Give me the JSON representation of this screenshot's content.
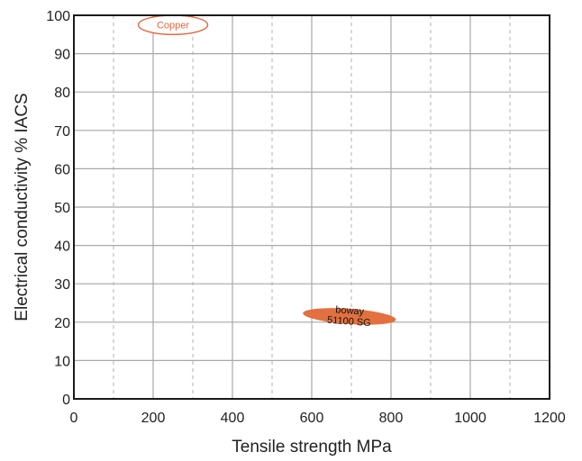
{
  "chart_data": {
    "type": "scatter",
    "title": "",
    "xlabel": "Tensile strength MPa",
    "ylabel": "Electrical conductivity % IACS",
    "xlim": [
      0,
      1200
    ],
    "ylim": [
      0,
      100
    ],
    "xticks": [
      0,
      200,
      400,
      600,
      800,
      1000,
      1200
    ],
    "yticks": [
      0,
      10,
      20,
      30,
      40,
      50,
      60,
      70,
      80,
      90,
      100
    ],
    "x_minor_dashed": [
      100,
      300,
      500,
      700,
      900,
      1100
    ],
    "grid": true,
    "regions": [
      {
        "label": "Copper",
        "x_range": [
          160,
          335
        ],
        "y_range": [
          95,
          100
        ],
        "center": [
          250,
          97.5
        ],
        "style": "outline",
        "color": "#e2673f"
      },
      {
        "label_lines": [
          "boway",
          "51100 SG"
        ],
        "x_range": [
          575,
          810
        ],
        "y_range": [
          19.5,
          23.5
        ],
        "center": [
          695,
          21.5
        ],
        "style": "filled",
        "color": "#e2713f"
      }
    ]
  }
}
